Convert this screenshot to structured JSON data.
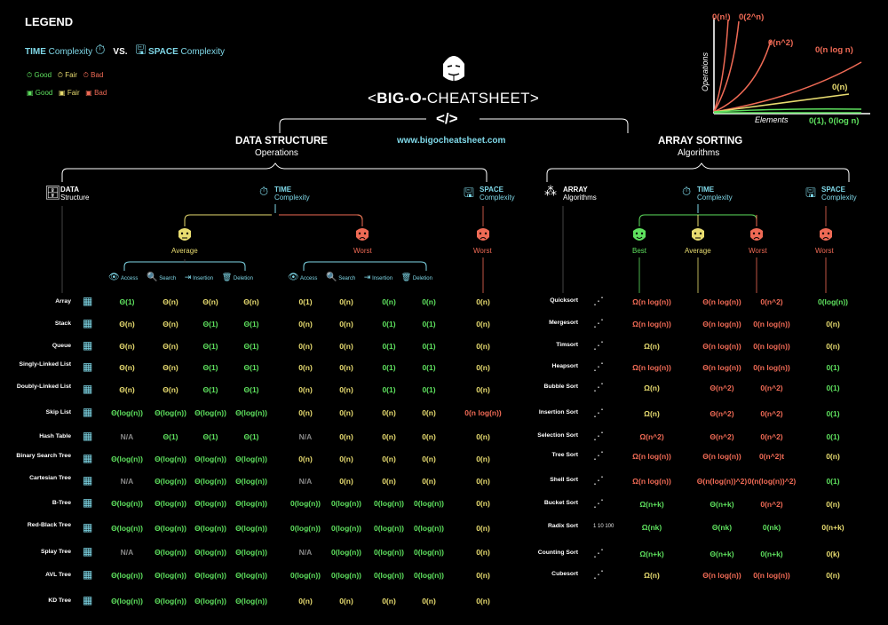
{
  "legend": {
    "title": "LEGEND",
    "time_word": "TIME",
    "time_rest": "Complexity",
    "vs": "VS.",
    "space_word": "SPACE",
    "space_rest": "Complexity",
    "good": "Good",
    "fair": "Fair",
    "bad": "Bad"
  },
  "header": {
    "title_prefix": "<",
    "title_bold": "BIG-O-",
    "title_rest": "CHEATSHEET",
    "title_suffix": ">",
    "code_glyph": "</>",
    "url": "www.bigocheatsheet.com"
  },
  "graph": {
    "ylabel": "Operations",
    "xlabel": "Elements",
    "curves": [
      "0(n!)",
      "0(2^n)",
      "0(n^2)",
      "0(n log n)",
      "0(n)",
      "0(1), 0(log n)"
    ]
  },
  "ds": {
    "title": "DATA STRUCTURE",
    "subtitle": "Operations",
    "col_data_a": "DATA",
    "col_data_b": "Structure",
    "col_time_a": "TIME",
    "col_time_b": "Complexity",
    "col_space_a": "SPACE",
    "col_space_b": "Complexity",
    "average": "Average",
    "worst": "Worst",
    "space_worst": "Worst",
    "ops": [
      "Access",
      "Search",
      "Insertion",
      "Deletion"
    ],
    "rows": [
      {
        "name": "Array",
        "vals": [
          "Θ(1)",
          "Θ(n)",
          "Θ(n)",
          "Θ(n)",
          "0(1)",
          "0(n)",
          "0(n)",
          "0(n)",
          "0(n)"
        ]
      },
      {
        "name": "Stack",
        "vals": [
          "Θ(n)",
          "Θ(n)",
          "Θ(1)",
          "Θ(1)",
          "0(n)",
          "0(n)",
          "0(1)",
          "0(1)",
          "0(n)"
        ]
      },
      {
        "name": "Queue",
        "vals": [
          "Θ(n)",
          "Θ(n)",
          "Θ(1)",
          "Θ(1)",
          "0(n)",
          "0(n)",
          "0(1)",
          "0(1)",
          "0(n)"
        ]
      },
      {
        "name": "Singly-Linked List",
        "vals": [
          "Θ(n)",
          "Θ(n)",
          "Θ(1)",
          "Θ(1)",
          "0(n)",
          "0(n)",
          "0(1)",
          "0(1)",
          "0(n)"
        ]
      },
      {
        "name": "Doubly-Linked List",
        "vals": [
          "Θ(n)",
          "Θ(n)",
          "Θ(1)",
          "Θ(1)",
          "0(n)",
          "0(n)",
          "0(1)",
          "0(1)",
          "0(n)"
        ]
      },
      {
        "name": "Skip List",
        "vals": [
          "Θ(log(n))",
          "Θ(log(n))",
          "Θ(log(n))",
          "Θ(log(n))",
          "0(n)",
          "0(n)",
          "0(n)",
          "0(n)",
          "0(n log(n))"
        ]
      },
      {
        "name": "Hash Table",
        "vals": [
          "N/A",
          "Θ(1)",
          "Θ(1)",
          "Θ(1)",
          "N/A",
          "0(n)",
          "0(n)",
          "0(n)",
          "0(n)"
        ]
      },
      {
        "name": "Binary Search Tree",
        "vals": [
          "Θ(log(n))",
          "Θ(log(n))",
          "Θ(log(n))",
          "Θ(log(n))",
          "0(n)",
          "0(n)",
          "0(n)",
          "0(n)",
          "0(n)"
        ]
      },
      {
        "name": "Cartesian Tree",
        "vals": [
          "N/A",
          "Θ(log(n))",
          "Θ(log(n))",
          "Θ(log(n))",
          "N/A",
          "0(n)",
          "0(n)",
          "0(n)",
          "0(n)"
        ]
      },
      {
        "name": "B-Tree",
        "vals": [
          "Θ(log(n))",
          "Θ(log(n))",
          "Θ(log(n))",
          "Θ(log(n))",
          "0(log(n))",
          "0(log(n))",
          "0(log(n))",
          "0(log(n))",
          "0(n)"
        ]
      },
      {
        "name": "Red-Black Tree",
        "vals": [
          "Θ(log(n))",
          "Θ(log(n))",
          "Θ(log(n))",
          "Θ(log(n))",
          "0(log(n))",
          "0(log(n))",
          "0(log(n))",
          "0(log(n))",
          "0(n)"
        ]
      },
      {
        "name": "Splay Tree",
        "vals": [
          "N/A",
          "Θ(log(n))",
          "Θ(log(n))",
          "Θ(log(n))",
          "N/A",
          "0(log(n))",
          "0(log(n))",
          "0(log(n))",
          "0(n)"
        ]
      },
      {
        "name": "AVL Tree",
        "vals": [
          "Θ(log(n))",
          "Θ(log(n))",
          "Θ(log(n))",
          "Θ(log(n))",
          "0(log(n))",
          "0(log(n))",
          "0(log(n))",
          "0(log(n))",
          "0(n)"
        ]
      },
      {
        "name": "KD Tree",
        "vals": [
          "Θ(log(n))",
          "Θ(log(n))",
          "Θ(log(n))",
          "Θ(log(n))",
          "0(n)",
          "0(n)",
          "0(n)",
          "0(n)",
          "0(n)"
        ]
      }
    ]
  },
  "sort": {
    "title": "ARRAY SORTING",
    "subtitle": "Algorithms",
    "col_array_a": "ARRAY",
    "col_array_b": "Algorithms",
    "col_time_a": "TIME",
    "col_time_b": "Complexity",
    "col_space_a": "SPACE",
    "col_space_b": "Complexity",
    "best": "Best",
    "average": "Average",
    "worst": "Worst",
    "space_worst": "Worst",
    "rows": [
      {
        "name": "Quicksort",
        "vals": [
          "Ω(n log(n))",
          "Θ(n log(n))",
          "0(n^2)",
          "0(log(n))"
        ]
      },
      {
        "name": "Mergesort",
        "vals": [
          "Ω(n log(n))",
          "Θ(n log(n))",
          "0(n log(n))",
          "0(n)"
        ]
      },
      {
        "name": "Timsort",
        "vals": [
          "Ω(n)",
          "Θ(n log(n))",
          "0(n log(n))",
          "0(n)"
        ]
      },
      {
        "name": "Heapsort",
        "vals": [
          "Ω(n log(n))",
          "Θ(n log(n))",
          "0(n log(n))",
          "0(1)"
        ]
      },
      {
        "name": "Bubble Sort",
        "vals": [
          "Ω(n)",
          "Θ(n^2)",
          "0(n^2)",
          "0(1)"
        ]
      },
      {
        "name": "Insertion Sort",
        "vals": [
          "Ω(n)",
          "Θ(n^2)",
          "0(n^2)",
          "0(1)"
        ]
      },
      {
        "name": "Selection Sort",
        "vals": [
          "Ω(n^2)",
          "Θ(n^2)",
          "0(n^2)",
          "0(1)"
        ]
      },
      {
        "name": "Tree Sort",
        "vals": [
          "Ω(n log(n))",
          "Θ(n log(n))",
          "0(n^2)t",
          "0(n)"
        ]
      },
      {
        "name": "Shell Sort",
        "vals": [
          "Ω(n log(n))",
          "Θ(n(log(n))^2)",
          "0(n(log(n))^2)",
          "0(1)"
        ]
      },
      {
        "name": "Bucket Sort",
        "vals": [
          "Ω(n+k)",
          "Θ(n+k)",
          "0(n^2)",
          "0(n)"
        ]
      },
      {
        "name": "Radix Sort",
        "vals": [
          "Ω(nk)",
          "Θ(nk)",
          "0(nk)",
          "0(n+k)"
        ]
      },
      {
        "name": "Counting Sort",
        "vals": [
          "Ω(n+k)",
          "Θ(n+k)",
          "0(n+k)",
          "0(k)"
        ]
      },
      {
        "name": "Cubesort",
        "vals": [
          "Ω(n)",
          "Θ(n log(n))",
          "0(n log(n))",
          "0(n)"
        ]
      }
    ],
    "radix_icon_text": "1 10 100"
  },
  "colors": {
    "good": "#5ee05e",
    "fair": "#e8dc70",
    "bad": "#ef6a55",
    "accent": "#7fd8e8"
  },
  "ds_color_codes": [
    [
      "g",
      "y",
      "y",
      "y",
      "y",
      "y",
      "g",
      "g",
      "y"
    ],
    [
      "y",
      "y",
      "g",
      "g",
      "y",
      "y",
      "g",
      "g",
      "y"
    ],
    [
      "y",
      "y",
      "g",
      "g",
      "y",
      "y",
      "g",
      "g",
      "y"
    ],
    [
      "y",
      "y",
      "g",
      "g",
      "y",
      "y",
      "g",
      "g",
      "y"
    ],
    [
      "y",
      "y",
      "g",
      "g",
      "y",
      "y",
      "g",
      "g",
      "y"
    ],
    [
      "g",
      "g",
      "g",
      "g",
      "y",
      "y",
      "y",
      "y",
      "r"
    ],
    [
      "n",
      "g",
      "g",
      "g",
      "n",
      "y",
      "y",
      "y",
      "y"
    ],
    [
      "g",
      "g",
      "g",
      "g",
      "y",
      "y",
      "y",
      "y",
      "y"
    ],
    [
      "n",
      "g",
      "g",
      "g",
      "n",
      "y",
      "y",
      "y",
      "y"
    ],
    [
      "g",
      "g",
      "g",
      "g",
      "g",
      "g",
      "g",
      "g",
      "y"
    ],
    [
      "g",
      "g",
      "g",
      "g",
      "g",
      "g",
      "g",
      "g",
      "y"
    ],
    [
      "n",
      "g",
      "g",
      "g",
      "n",
      "g",
      "g",
      "g",
      "y"
    ],
    [
      "g",
      "g",
      "g",
      "g",
      "g",
      "g",
      "g",
      "g",
      "y"
    ],
    [
      "g",
      "g",
      "g",
      "g",
      "y",
      "y",
      "y",
      "y",
      "y"
    ]
  ],
  "sort_color_codes": [
    [
      "r",
      "r",
      "r",
      "g"
    ],
    [
      "r",
      "r",
      "r",
      "y"
    ],
    [
      "y",
      "r",
      "r",
      "y"
    ],
    [
      "r",
      "r",
      "r",
      "g"
    ],
    [
      "y",
      "r",
      "r",
      "g"
    ],
    [
      "y",
      "r",
      "r",
      "g"
    ],
    [
      "r",
      "r",
      "r",
      "g"
    ],
    [
      "r",
      "r",
      "r",
      "y"
    ],
    [
      "r",
      "r",
      "r",
      "g"
    ],
    [
      "g",
      "g",
      "r",
      "y"
    ],
    [
      "g",
      "g",
      "g",
      "y"
    ],
    [
      "g",
      "g",
      "g",
      "y"
    ],
    [
      "y",
      "r",
      "r",
      "y"
    ]
  ]
}
